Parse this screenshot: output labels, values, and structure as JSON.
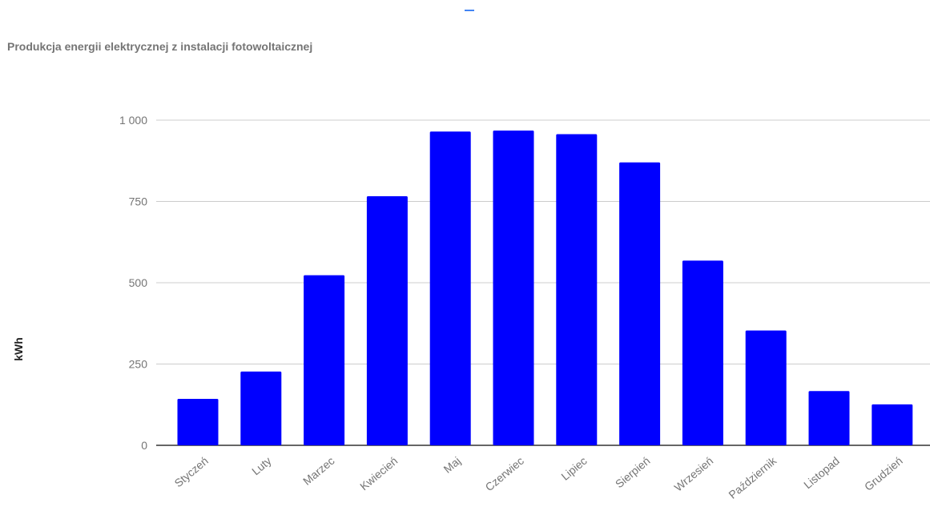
{
  "chart_data": {
    "type": "bar",
    "title": "Produkcja energii elektrycznej z instalacji fotowoltaicznej",
    "xlabel": "",
    "ylabel": "kWh",
    "categories": [
      "Styczeń",
      "Luty",
      "Marzec",
      "Kwiecień",
      "Maj",
      "Czerwiec",
      "Lipiec",
      "Sierpień",
      "Wrzesień",
      "Październik",
      "Listopad",
      "Grudzień"
    ],
    "values": [
      143,
      227,
      523,
      766,
      965,
      968,
      957,
      870,
      568,
      353,
      167,
      126
    ],
    "ylim": [
      0,
      1000
    ],
    "yticks": [
      0,
      250,
      500,
      750,
      1000
    ],
    "ytick_labels": [
      "0",
      "250",
      "500",
      "750",
      "1 000"
    ],
    "bar_color": "#0000ff",
    "grid": true,
    "legend": "none"
  }
}
